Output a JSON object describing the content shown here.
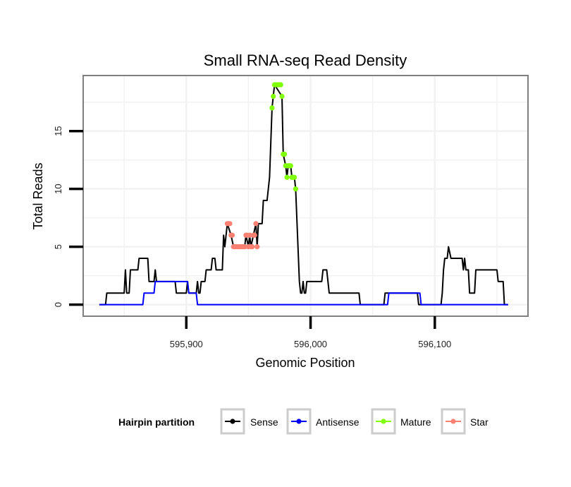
{
  "chart_data": {
    "type": "line",
    "title": "Small RNA-seq Read Density",
    "xlabel": "Genomic Position",
    "ylabel": "Total Reads",
    "xlim": [
      595817,
      596175
    ],
    "ylim": [
      -1,
      19.8
    ],
    "x_ticks": [
      {
        "value": 595900,
        "label": "595,900"
      },
      {
        "value": 596000,
        "label": "596,000"
      },
      {
        "value": 596100,
        "label": "596,100"
      }
    ],
    "y_ticks": [
      {
        "value": 0,
        "label": "0"
      },
      {
        "value": 5,
        "label": "5"
      },
      {
        "value": 10,
        "label": "10"
      },
      {
        "value": 15,
        "label": "15"
      }
    ],
    "grid": true,
    "legend": {
      "title": "Hairpin partition",
      "position": "bottom",
      "entries": [
        {
          "name": "Sense",
          "color": "#000000"
        },
        {
          "name": "Antisense",
          "color": "#0000ff"
        },
        {
          "name": "Mature",
          "color": "#7fff00"
        },
        {
          "name": "Star",
          "color": "#fa8072"
        }
      ]
    },
    "series": [
      {
        "name": "Sense",
        "color": "#000000",
        "points": [
          [
            595830,
            0
          ],
          [
            595835,
            0
          ],
          [
            595836,
            1
          ],
          [
            595850,
            1
          ],
          [
            595851,
            3
          ],
          [
            595852,
            1
          ],
          [
            595854,
            1
          ],
          [
            595855,
            3
          ],
          [
            595861,
            3
          ],
          [
            595862,
            4
          ],
          [
            595869,
            4
          ],
          [
            595870,
            2
          ],
          [
            595874,
            2
          ],
          [
            595875,
            3
          ],
          [
            595876,
            2
          ],
          [
            595891,
            2
          ],
          [
            595892,
            1
          ],
          [
            595900,
            1
          ],
          [
            595901,
            2
          ],
          [
            595902,
            1
          ],
          [
            595908,
            1
          ],
          [
            595909,
            2
          ],
          [
            595910,
            1
          ],
          [
            595911,
            1
          ],
          [
            595912,
            2
          ],
          [
            595915,
            2
          ],
          [
            595916,
            3
          ],
          [
            595920,
            3
          ],
          [
            595921,
            4
          ],
          [
            595923,
            4
          ],
          [
            595924,
            3
          ],
          [
            595929,
            3
          ],
          [
            595930,
            6
          ],
          [
            595931,
            5
          ],
          [
            595932,
            6
          ],
          [
            595933,
            7
          ],
          [
            595936,
            6
          ],
          [
            595938,
            5
          ],
          [
            595947,
            5
          ],
          [
            595948,
            6
          ],
          [
            595950,
            5
          ],
          [
            595951,
            6
          ],
          [
            595952,
            5
          ],
          [
            595954,
            6
          ],
          [
            595956,
            7
          ],
          [
            595957,
            5
          ],
          [
            595958,
            7
          ],
          [
            595961,
            7
          ],
          [
            595962,
            9
          ],
          [
            595965,
            9
          ],
          [
            595966,
            10
          ],
          [
            595967,
            11
          ],
          [
            595969,
            17
          ],
          [
            595970,
            18
          ],
          [
            595971,
            19
          ],
          [
            595977,
            18
          ],
          [
            595978,
            13
          ],
          [
            595980,
            12
          ],
          [
            595981,
            11
          ],
          [
            595982,
            12
          ],
          [
            595984,
            12
          ],
          [
            595985,
            11
          ],
          [
            595986,
            11
          ],
          [
            595987,
            11
          ],
          [
            595988,
            10
          ],
          [
            595991,
            2
          ],
          [
            595992,
            1
          ],
          [
            595993,
            1
          ],
          [
            595994,
            2
          ],
          [
            595995,
            1
          ],
          [
            595996,
            1
          ],
          [
            595997,
            2
          ],
          [
            596009,
            2
          ],
          [
            596010,
            3
          ],
          [
            596013,
            3
          ],
          [
            596014,
            2
          ],
          [
            596015,
            1
          ],
          [
            596039,
            1
          ],
          [
            596040,
            0
          ],
          [
            596059,
            0
          ],
          [
            596060,
            1
          ],
          [
            596086,
            1
          ],
          [
            596087,
            0
          ],
          [
            596105,
            0
          ],
          [
            596106,
            1
          ],
          [
            596107,
            3
          ],
          [
            596108,
            4
          ],
          [
            596110,
            4
          ],
          [
            596111,
            5
          ],
          [
            596113,
            4
          ],
          [
            596122,
            4
          ],
          [
            596123,
            3
          ],
          [
            596124,
            4
          ],
          [
            596125,
            3
          ],
          [
            596127,
            3
          ],
          [
            596128,
            1
          ],
          [
            596132,
            1
          ],
          [
            596133,
            3
          ],
          [
            596150,
            3
          ],
          [
            596151,
            2
          ],
          [
            596155,
            2
          ],
          [
            596156,
            0
          ],
          [
            596159,
            0
          ]
        ]
      },
      {
        "name": "Antisense",
        "color": "#0000ff",
        "points": [
          [
            595830,
            0
          ],
          [
            595865,
            0
          ],
          [
            595866,
            1
          ],
          [
            595874,
            1
          ],
          [
            595875,
            2
          ],
          [
            595901,
            2
          ],
          [
            595902,
            1
          ],
          [
            595908,
            1
          ],
          [
            595909,
            0
          ],
          [
            596062,
            0
          ],
          [
            596063,
            1
          ],
          [
            596088,
            1
          ],
          [
            596089,
            0
          ],
          [
            596159,
            0
          ]
        ]
      },
      {
        "name": "Mature",
        "color": "#7fff00",
        "points": [
          [
            595969,
            17
          ],
          [
            595970,
            18
          ],
          [
            595971,
            19
          ],
          [
            595972,
            19
          ],
          [
            595973,
            19
          ],
          [
            595974,
            19
          ],
          [
            595975,
            19
          ],
          [
            595976,
            19
          ],
          [
            595977,
            18
          ],
          [
            595978,
            13
          ],
          [
            595979,
            13
          ],
          [
            595980,
            12
          ],
          [
            595981,
            11
          ],
          [
            595982,
            12
          ],
          [
            595983,
            12
          ],
          [
            595984,
            12
          ],
          [
            595985,
            11
          ],
          [
            595986,
            11
          ],
          [
            595987,
            11
          ],
          [
            595988,
            10
          ]
        ]
      },
      {
        "name": "Star",
        "color": "#fa8072",
        "points": [
          [
            595933,
            7
          ],
          [
            595934,
            7
          ],
          [
            595935,
            7
          ],
          [
            595936,
            6
          ],
          [
            595937,
            6
          ],
          [
            595938,
            5
          ],
          [
            595939,
            5
          ],
          [
            595940,
            5
          ],
          [
            595941,
            5
          ],
          [
            595942,
            5
          ],
          [
            595943,
            5
          ],
          [
            595944,
            5
          ],
          [
            595945,
            5
          ],
          [
            595946,
            5
          ],
          [
            595947,
            5
          ],
          [
            595948,
            6
          ],
          [
            595949,
            6
          ],
          [
            595950,
            5
          ],
          [
            595951,
            6
          ],
          [
            595952,
            5
          ],
          [
            595953,
            5
          ],
          [
            595954,
            6
          ],
          [
            595955,
            6
          ],
          [
            595956,
            7
          ],
          [
            595957,
            5
          ]
        ]
      }
    ]
  }
}
